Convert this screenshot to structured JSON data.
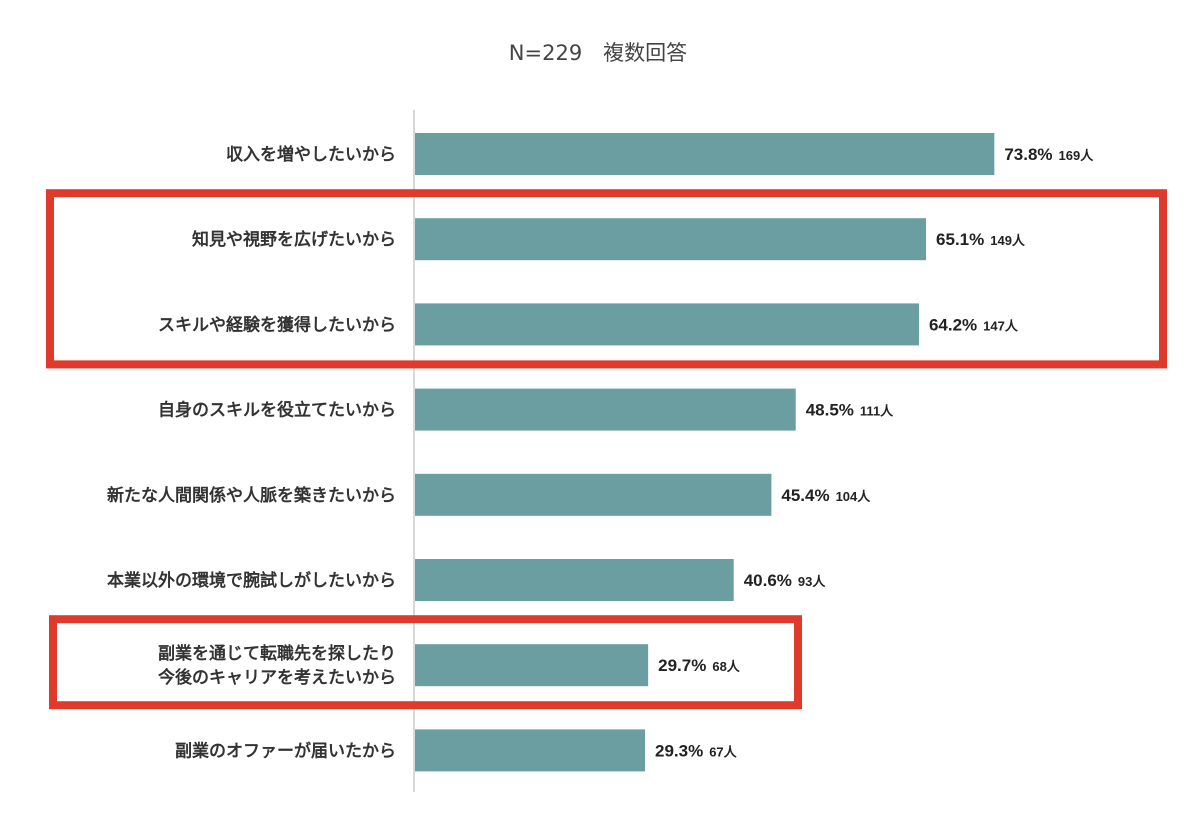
{
  "chart_data": {
    "type": "bar",
    "orientation": "horizontal",
    "title": "N=229　複数回答",
    "xlim": [
      0,
      100
    ],
    "bar_color": "#6a9ea0",
    "highlight_color": "#e03a2c",
    "categories": [
      [
        "収入を増やしたいから"
      ],
      [
        "知見や視野を広げたいから"
      ],
      [
        "スキルや経験を獲得したいから"
      ],
      [
        "自身のスキルを役立てたいから"
      ],
      [
        "新たな人間関係や人脈を築きたいから"
      ],
      [
        "本業以外の環境で腕試しがしたいから"
      ],
      [
        "副業を通じて転職先を探したり",
        "今後のキャリアを考えたいから"
      ],
      [
        "副業のオファーが届いたから"
      ]
    ],
    "values": [
      73.8,
      65.1,
      64.2,
      48.5,
      45.4,
      40.6,
      29.7,
      29.3
    ],
    "value_labels": [
      "73.8%",
      "65.1%",
      "64.2%",
      "48.5%",
      "45.4%",
      "40.6%",
      "29.7%",
      "29.3%"
    ],
    "count_labels": [
      "169人",
      "149人",
      "147人",
      "111人",
      "104人",
      "93人",
      "68人",
      "67人"
    ],
    "highlight_groups": [
      [
        1,
        2
      ],
      [
        6
      ]
    ]
  }
}
